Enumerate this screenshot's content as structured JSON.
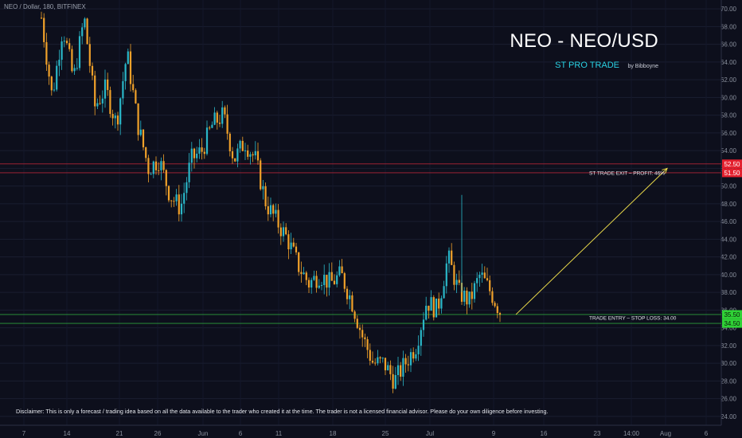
{
  "header": {
    "symbol": "NEO / Dollar, 180, BITFINEX",
    "title": "NEO - NEO/USD",
    "subtitle": "ST PRO TRADE",
    "byline": "by Bibboyne"
  },
  "annotations": {
    "exit_label": "ST TRADE EXIT – PROFIT: 46%",
    "entry_label": "TRADE ENTRY – STOP LOSS: 34.00"
  },
  "disclaimer": "Disclaimer: This is only a forecast / trading idea based on all the data available to the trader who created it at the time. The trader is not a licensed financial advisor. Please do your own diligence before investing.",
  "colors": {
    "background": "#0d0f1c",
    "up": "#2ab7c8",
    "down": "#f0a12a",
    "exit_line": "#c0283a",
    "entry_line": "#2fae3e",
    "arrow": "#e8d84a",
    "entry_badge": "#2fd236",
    "exit_badge": "#e4202e"
  },
  "chart_data": {
    "type": "candlestick",
    "title": "NEO - NEO/USD",
    "ylim": [
      23,
      71
    ],
    "y_ticks": [
      "24.00",
      "26.00",
      "28.00",
      "30.00",
      "32.00",
      "34.00",
      "36.00",
      "38.00",
      "40.00",
      "42.00",
      "44.00",
      "46.00",
      "48.00",
      "50.00",
      "52.00",
      "54.00",
      "56.00",
      "58.00",
      "60.00",
      "62.00",
      "64.00",
      "66.00",
      "68.00",
      "70.00"
    ],
    "x_ticks": [
      "7",
      "14",
      "21",
      "26",
      "Jun",
      "6",
      "11",
      "18",
      "25",
      "Jul",
      "9",
      "16",
      "23",
      "14:00",
      "Aug",
      "6"
    ],
    "price_series": [
      {
        "date": "7",
        "close": 69
      },
      {
        "date": "9",
        "close": 60
      },
      {
        "date": "11",
        "close": 68
      },
      {
        "date": "12",
        "close": 62
      },
      {
        "date": "14",
        "close": 69
      },
      {
        "date": "16",
        "close": 59
      },
      {
        "date": "18",
        "close": 61
      },
      {
        "date": "19",
        "close": 57
      },
      {
        "date": "21",
        "close": 65
      },
      {
        "date": "22",
        "close": 57
      },
      {
        "date": "23",
        "close": 52
      },
      {
        "date": "25",
        "close": 53
      },
      {
        "date": "26",
        "close": 49
      },
      {
        "date": "28",
        "close": 47.5
      },
      {
        "date": "30",
        "close": 53
      },
      {
        "date": "31",
        "close": 54
      },
      {
        "date": "Jun",
        "close": 57
      },
      {
        "date": "Jun 3",
        "close": 58
      },
      {
        "date": "Jun 4",
        "close": 53
      },
      {
        "date": "Jun 6",
        "close": 55
      },
      {
        "date": "Jun 8",
        "close": 53
      },
      {
        "date": "Jun 10",
        "close": 48
      },
      {
        "date": "Jun 11",
        "close": 46
      },
      {
        "date": "Jun 12",
        "close": 44
      },
      {
        "date": "Jun 13",
        "close": 41
      },
      {
        "date": "Jun 15",
        "close": 39
      },
      {
        "date": "Jun 17",
        "close": 40
      },
      {
        "date": "Jun 18",
        "close": 39
      },
      {
        "date": "Jun 20",
        "close": 40
      },
      {
        "date": "Jun 22",
        "close": 37
      },
      {
        "date": "Jun 23",
        "close": 33
      },
      {
        "date": "Jun 25",
        "close": 30
      },
      {
        "date": "Jun 27",
        "close": 30
      },
      {
        "date": "Jun 28",
        "close": 28
      },
      {
        "date": "Jun 30",
        "close": 30
      },
      {
        "date": "Jul",
        "close": 32
      },
      {
        "date": "Jul 2",
        "close": 37
      },
      {
        "date": "Jul 4",
        "close": 36
      },
      {
        "date": "Jul 5",
        "close": 42
      },
      {
        "date": "Jul 6",
        "close": 38
      },
      {
        "date": "Jul 7",
        "close": 37
      },
      {
        "date": "Jul 8",
        "close": 40
      },
      {
        "date": "Jul 9",
        "close": 38
      },
      {
        "date": "Jul 10",
        "close": 35.5
      }
    ],
    "levels": [
      {
        "value": 52.5,
        "label": "52.50"
      },
      {
        "value": 51.5,
        "label": "51.50"
      },
      {
        "value": 35.5,
        "label": "35.50"
      },
      {
        "value": 34.5,
        "label": "34.50"
      }
    ],
    "projection": {
      "from_price": 35.5,
      "to_price": 52.0,
      "from_date": "Jul 10",
      "to_date": "Aug"
    }
  }
}
